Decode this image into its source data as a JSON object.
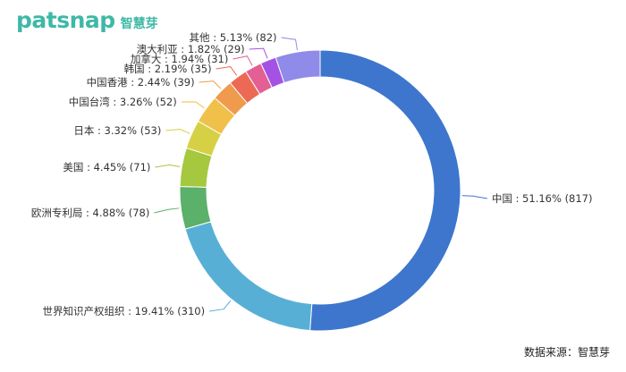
{
  "brand": {
    "wordmark": "patsnap",
    "name_cn": "智慧芽"
  },
  "source_note": "数据来源：智慧芽",
  "chart_data": {
    "type": "pie",
    "variant": "donut",
    "title": "",
    "start_angle_deg": 0,
    "direction": "clockwise",
    "slices": [
      {
        "label": "中国",
        "value": 817,
        "percent": "51.16%",
        "color": "#3d76cc"
      },
      {
        "label": "世界知识产权组织",
        "value": 310,
        "percent": "19.41%",
        "color": "#58afd6"
      },
      {
        "label": "欧洲专利局",
        "value": 78,
        "percent": "4.88%",
        "color": "#5bb06a"
      },
      {
        "label": "美国",
        "value": 71,
        "percent": "4.45%",
        "color": "#a5c83f"
      },
      {
        "label": "日本",
        "value": 53,
        "percent": "3.32%",
        "color": "#d6d044"
      },
      {
        "label": "中国台湾",
        "value": 52,
        "percent": "3.26%",
        "color": "#f1c04a"
      },
      {
        "label": "中国香港",
        "value": 39,
        "percent": "2.44%",
        "color": "#ef9a4c"
      },
      {
        "label": "韩国",
        "value": 35,
        "percent": "2.19%",
        "color": "#ec6a55"
      },
      {
        "label": "加拿大",
        "value": 31,
        "percent": "1.94%",
        "color": "#e26094"
      },
      {
        "label": "澳大利亚",
        "value": 29,
        "percent": "1.82%",
        "color": "#a452e3"
      },
      {
        "label": "其他",
        "value": 82,
        "percent": "5.13%",
        "color": "#8f8be8"
      }
    ]
  }
}
